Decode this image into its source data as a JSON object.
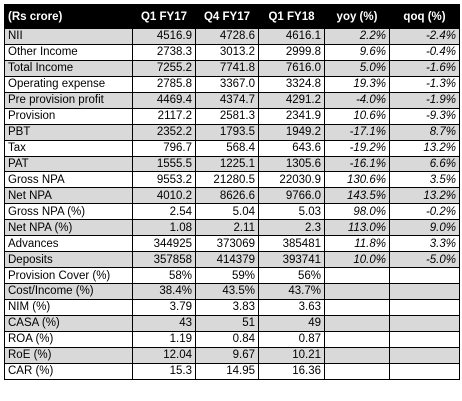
{
  "table": {
    "headers": [
      "(Rs crore)",
      "Q1 FY17",
      "Q4 FY17",
      "Q1 FY18",
      "yoy (%)",
      "qoq (%)"
    ],
    "rows": [
      {
        "label": "NII",
        "q1fy17": "4516.9",
        "q4fy17": "4728.6",
        "q1fy18": "4616.1",
        "yoy": "2.2%",
        "qoq": "-2.4%",
        "shade": true
      },
      {
        "label": "Other Income",
        "q1fy17": "2738.3",
        "q4fy17": "3013.2",
        "q1fy18": "2999.8",
        "yoy": "9.6%",
        "qoq": "-0.4%",
        "shade": false
      },
      {
        "label": "Total Income",
        "q1fy17": "7255.2",
        "q4fy17": "7741.8",
        "q1fy18": "7616.0",
        "yoy": "5.0%",
        "qoq": "-1.6%",
        "shade": true
      },
      {
        "label": "Operating expense",
        "q1fy17": "2785.8",
        "q4fy17": "3367.0",
        "q1fy18": "3324.8",
        "yoy": "19.3%",
        "qoq": "-1.3%",
        "shade": false
      },
      {
        "label": "Pre provision profit",
        "q1fy17": "4469.4",
        "q4fy17": "4374.7",
        "q1fy18": "4291.2",
        "yoy": "-4.0%",
        "qoq": "-1.9%",
        "shade": true
      },
      {
        "label": "Provision",
        "q1fy17": "2117.2",
        "q4fy17": "2581.3",
        "q1fy18": "2341.9",
        "yoy": "10.6%",
        "qoq": "-9.3%",
        "shade": false
      },
      {
        "label": "PBT",
        "q1fy17": "2352.2",
        "q4fy17": "1793.5",
        "q1fy18": "1949.2",
        "yoy": "-17.1%",
        "qoq": "8.7%",
        "shade": true
      },
      {
        "label": "Tax",
        "q1fy17": "796.7",
        "q4fy17": "568.4",
        "q1fy18": "643.6",
        "yoy": "-19.2%",
        "qoq": "13.2%",
        "shade": false
      },
      {
        "label": "PAT",
        "q1fy17": "1555.5",
        "q4fy17": "1225.1",
        "q1fy18": "1305.6",
        "yoy": "-16.1%",
        "qoq": "6.6%",
        "shade": true
      },
      {
        "label": "Gross NPA",
        "q1fy17": "9553.2",
        "q4fy17": "21280.5",
        "q1fy18": "22030.9",
        "yoy": "130.6%",
        "qoq": "3.5%",
        "shade": false
      },
      {
        "label": "Net NPA",
        "q1fy17": "4010.2",
        "q4fy17": "8626.6",
        "q1fy18": "9766.0",
        "yoy": "143.5%",
        "qoq": "13.2%",
        "shade": true
      },
      {
        "label": "Gross NPA  (%)",
        "q1fy17": "2.54",
        "q4fy17": "5.04",
        "q1fy18": "5.03",
        "yoy": "98.0%",
        "qoq": "-0.2%",
        "shade": false
      },
      {
        "label": "Net NPA (%)",
        "q1fy17": "1.08",
        "q4fy17": "2.11",
        "q1fy18": "2.3",
        "yoy": "113.0%",
        "qoq": "9.0%",
        "shade": true
      },
      {
        "label": "Advances",
        "q1fy17": "344925",
        "q4fy17": "373069",
        "q1fy18": "385481",
        "yoy": "11.8%",
        "qoq": "3.3%",
        "shade": false
      },
      {
        "label": "Deposits",
        "q1fy17": "357858",
        "q4fy17": "414379",
        "q1fy18": "393741",
        "yoy": "10.0%",
        "qoq": "-5.0%",
        "shade": true
      },
      {
        "label": "Provision Cover (%)",
        "q1fy17": "58%",
        "q4fy17": "59%",
        "q1fy18": "56%",
        "yoy": "",
        "qoq": "",
        "shade": false
      },
      {
        "label": "Cost/Income (%)",
        "q1fy17": "38.4%",
        "q4fy17": "43.5%",
        "q1fy18": "43.7%",
        "yoy": "",
        "qoq": "",
        "shade": true
      },
      {
        "label": "NIM (%)",
        "q1fy17": "3.79",
        "q4fy17": "3.83",
        "q1fy18": "3.63",
        "yoy": "",
        "qoq": "",
        "shade": false
      },
      {
        "label": "CASA (%)",
        "q1fy17": "43",
        "q4fy17": "51",
        "q1fy18": "49",
        "yoy": "",
        "qoq": "",
        "shade": true
      },
      {
        "label": "ROA (%)",
        "q1fy17": "1.19",
        "q4fy17": "0.84",
        "q1fy18": "0.87",
        "yoy": "",
        "qoq": "",
        "shade": false
      },
      {
        "label": "RoE (%)",
        "q1fy17": "12.04",
        "q4fy17": "9.67",
        "q1fy18": "10.21",
        "yoy": "",
        "qoq": "",
        "shade": true
      },
      {
        "label": "CAR (%)",
        "q1fy17": "15.3",
        "q4fy17": "14.95",
        "q1fy18": "16.36",
        "yoy": "",
        "qoq": "",
        "shade": false
      }
    ]
  },
  "colors": {
    "header_bg": "#000000",
    "header_text": "#ffffff",
    "shaded_row": "#d9d9d9",
    "plain_row": "#ffffff",
    "border": "#000000"
  }
}
